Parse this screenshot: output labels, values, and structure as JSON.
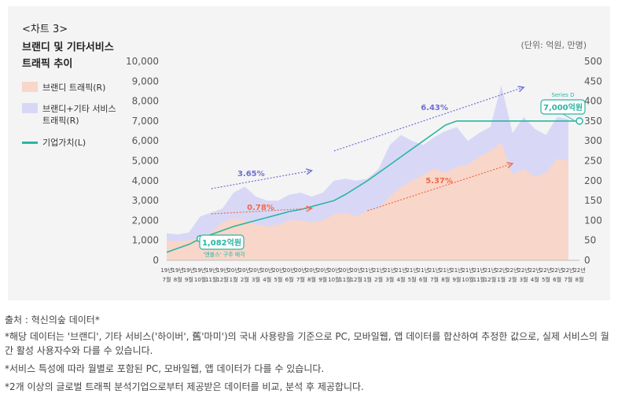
{
  "header": {
    "chart_no": "<차트 3>",
    "title_line1": "브랜디 및 기타서비스",
    "title_line2": "트래픽 추이",
    "unit": "(단위: 억원, 만명)"
  },
  "legend": [
    {
      "label": "브랜디 트래픽(R)",
      "color": "#f8d6c9",
      "kind": "area"
    },
    {
      "label": "브랜디+기타 서비스\n트래픽(R)",
      "color": "#d8d8f6",
      "kind": "area"
    },
    {
      "label": "기업가치(L)",
      "color": "#2bb5a4",
      "kind": "line"
    }
  ],
  "colors": {
    "panel": "#f4f4f4",
    "brandy_area": "#f8d6c9",
    "total_area": "#d8d8f6",
    "value_line": "#2bb5a4",
    "arrow_blue": "#6f6fd8",
    "arrow_red": "#f06a4a",
    "callout": "#2bb5a4"
  },
  "chart_data": {
    "type": "area",
    "x": [
      "19년 7월",
      "19년 8월",
      "19년 9월",
      "19년 10월",
      "19년 11월",
      "19년 12월",
      "20년 1월",
      "20년 2월",
      "20년 3월",
      "20년 4월",
      "20년 5월",
      "20년 6월",
      "20년 7월",
      "20년 8월",
      "20년 9월",
      "20년 10월",
      "20년 11월",
      "20년 12월",
      "21년 1월",
      "21년 2월",
      "21년 3월",
      "21년 4월",
      "21년 5월",
      "21년 6월",
      "21년 7월",
      "21년 8월",
      "21년 9월",
      "21년 10월",
      "21년 11월",
      "21년 12월",
      "22년 1월",
      "22년 2월",
      "22년 3월",
      "22년 4월",
      "22년 5월",
      "22년 6월",
      "22년 7월",
      "22년 8월"
    ],
    "tick_labels_top": [
      "19년",
      "19년",
      "19년",
      "19년",
      "19년",
      "19년",
      "20년",
      "20년",
      "20년",
      "20년",
      "20년",
      "20년",
      "20년",
      "20년",
      "20년",
      "20년",
      "20년",
      "20년",
      "21년",
      "21년",
      "21년",
      "21년",
      "21년",
      "21년",
      "21년",
      "21년",
      "21년",
      "21년",
      "21년",
      "21년",
      "22년",
      "22년",
      "22년",
      "22년",
      "22년",
      "22년",
      "22년",
      "22년"
    ],
    "tick_labels_bottom": [
      "7월",
      "8월",
      "9월",
      "10월",
      "11월",
      "12월",
      "1월",
      "2월",
      "3월",
      "4월",
      "5월",
      "6월",
      "7월",
      "8월",
      "9월",
      "10월",
      "11월",
      "12월",
      "1월",
      "2월",
      "3월",
      "4월",
      "5월",
      "6월",
      "7월",
      "8월",
      "9월",
      "10월",
      "11월",
      "12월",
      "1월",
      "2월",
      "3월",
      "4월",
      "5월",
      "6월",
      "7월",
      "8월"
    ],
    "left_axis": {
      "label": "기업가치",
      "ticks": [
        "0",
        "1,000",
        "2,000",
        "3,000",
        "4,000",
        "5,000",
        "6,000",
        "7,000",
        "8,000",
        "9,000",
        "10,000"
      ],
      "ylim": [
        0,
        10000
      ]
    },
    "right_axis": {
      "label": "트래픽",
      "ticks": [
        "0",
        "50",
        "100",
        "150",
        "200",
        "250",
        "300",
        "350",
        "400",
        "450",
        "500"
      ],
      "ylim": [
        0,
        500
      ]
    },
    "series": [
      {
        "name": "브랜디 트래픽(R)",
        "axis": "right",
        "values": [
          50,
          48,
          50,
          60,
          70,
          95,
          105,
          100,
          90,
          85,
          90,
          100,
          100,
          95,
          100,
          115,
          120,
          110,
          125,
          130,
          160,
          185,
          200,
          215,
          230,
          220,
          235,
          240,
          260,
          275,
          295,
          215,
          230,
          210,
          220,
          255,
          250,
          null
        ]
      },
      {
        "name": "브랜디+기타 서비스 트래픽(R)",
        "axis": "right",
        "values": [
          68,
          65,
          70,
          110,
          120,
          130,
          170,
          185,
          160,
          150,
          150,
          165,
          170,
          160,
          170,
          200,
          205,
          200,
          205,
          230,
          290,
          315,
          300,
          290,
          310,
          325,
          335,
          300,
          320,
          335,
          440,
          320,
          360,
          330,
          315,
          360,
          355,
          null
        ]
      },
      {
        "name": "기업가치(L)",
        "axis": "left",
        "values": [
          400,
          600,
          800,
          1082,
          1300,
          1500,
          1700,
          1850,
          2000,
          2150,
          2300,
          2450,
          2550,
          2700,
          2850,
          3000,
          3300,
          3650,
          4000,
          4400,
          4800,
          5200,
          5600,
          6000,
          6400,
          6800,
          7000,
          7000,
          7000,
          7000,
          7000,
          7000,
          7000,
          7000,
          7000,
          7000,
          7000,
          7000
        ]
      }
    ],
    "annotations": [
      {
        "text": "3.65%",
        "color": "#6f6fd8"
      },
      {
        "text": "6.43%",
        "color": "#6f6fd8"
      },
      {
        "text": "0.78%",
        "color": "#f06a4a"
      },
      {
        "text": "5.37%",
        "color": "#f06a4a"
      },
      {
        "text": "1,082억원",
        "sub": "'앤블스' 구주 매각"
      },
      {
        "text": "7,000억원",
        "sub": "Series D"
      }
    ]
  },
  "footer": {
    "source": "출처 : 혁신의숲 데이터*",
    "note1": "*해당 데이터는 '브랜디', 기타 서비스('하이버', 舊'마미')의 국내 사용량을 기준으로 PC, 모바일웹, 앱 데이터를 합산하여 추정한 값으로, 실제 서비스의 월간 활성 사용자수와 다를 수 있습니다.",
    "note2": "*서비스 특성에 따라 월별로 포함된 PC, 모바일웹, 앱 데이터가 다를 수 있습니다.",
    "note3": "*2개 이상의 글로벌 트래픽 분석기업으로부터 제공받은 데이터를 비교, 분석 후 제공합니다."
  }
}
